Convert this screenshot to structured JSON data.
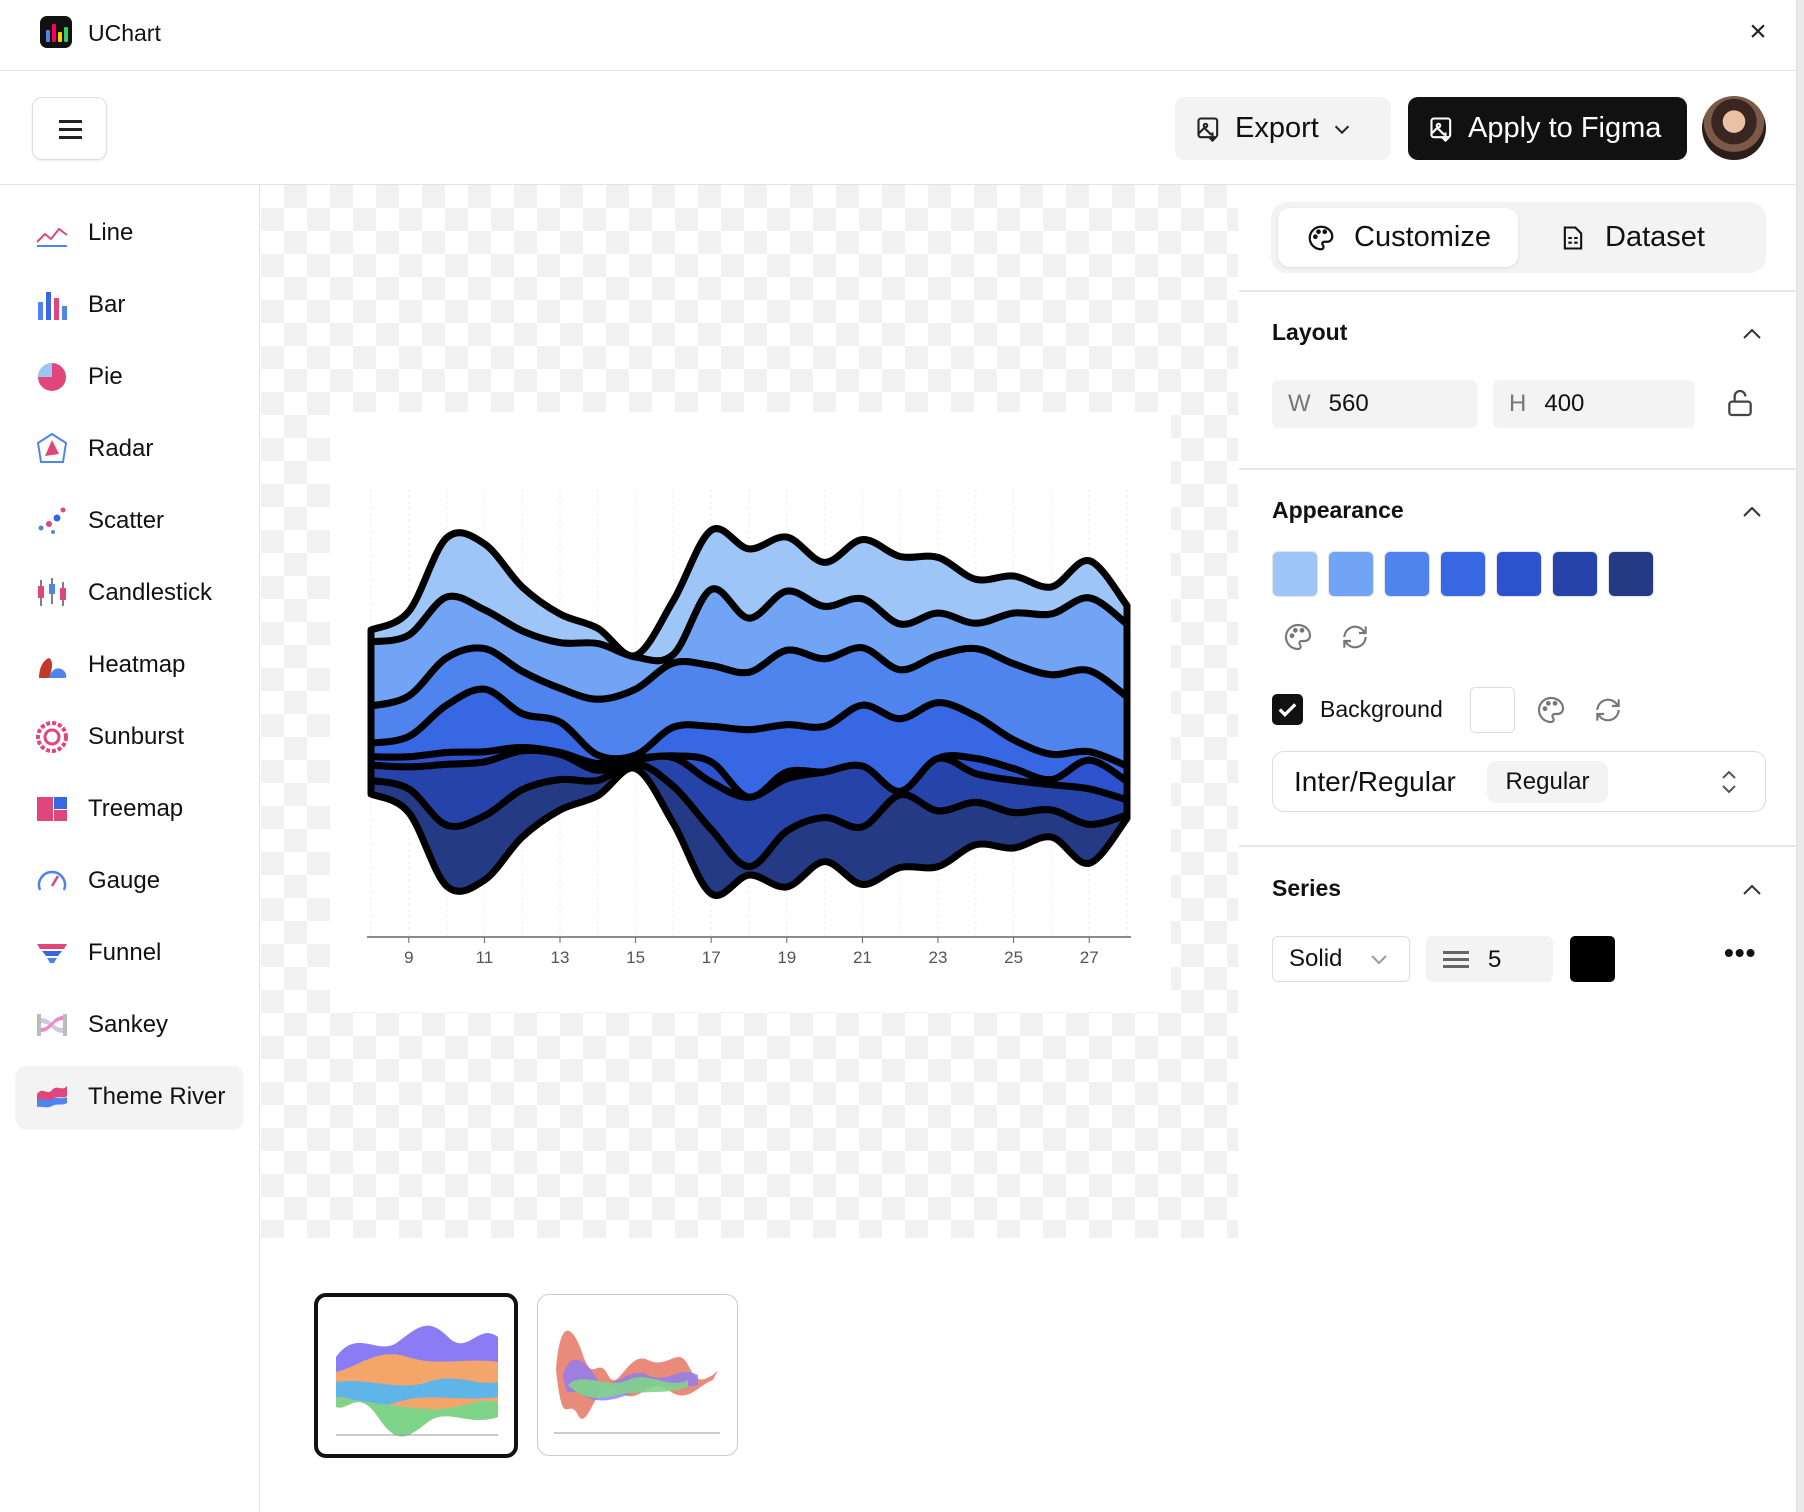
{
  "app": {
    "title": "UChart",
    "close_icon": "close-icon"
  },
  "toolbar": {
    "export_label": "Export",
    "apply_label": "Apply to Figma"
  },
  "sidebar": {
    "items": [
      {
        "label": "Line",
        "icon": "line-chart-icon"
      },
      {
        "label": "Bar",
        "icon": "bar-chart-icon"
      },
      {
        "label": "Pie",
        "icon": "pie-chart-icon"
      },
      {
        "label": "Radar",
        "icon": "radar-chart-icon"
      },
      {
        "label": "Scatter",
        "icon": "scatter-chart-icon"
      },
      {
        "label": "Candlestick",
        "icon": "candlestick-chart-icon"
      },
      {
        "label": "Heatmap",
        "icon": "heatmap-chart-icon"
      },
      {
        "label": "Sunburst",
        "icon": "sunburst-chart-icon"
      },
      {
        "label": "Treemap",
        "icon": "treemap-chart-icon"
      },
      {
        "label": "Gauge",
        "icon": "gauge-chart-icon"
      },
      {
        "label": "Funnel",
        "icon": "funnel-chart-icon"
      },
      {
        "label": "Sankey",
        "icon": "sankey-chart-icon"
      },
      {
        "label": "Theme River",
        "icon": "theme-river-chart-icon",
        "selected": true
      }
    ]
  },
  "panel": {
    "tabs": [
      {
        "label": "Customize",
        "active": true
      },
      {
        "label": "Dataset"
      }
    ],
    "layout": {
      "title": "Layout",
      "w_label": "W",
      "w": "560",
      "h_label": "H",
      "h": "400"
    },
    "appearance": {
      "title": "Appearance",
      "palette": [
        "#9dc5f8",
        "#71a4f5",
        "#4f84ee",
        "#3767e3",
        "#2c52d0",
        "#2643a9",
        "#253a85"
      ],
      "background_label": "Background",
      "background_checked": true,
      "background_color": "#ffffff",
      "font": "Inter/Regular",
      "font_weight": "Regular"
    },
    "series": {
      "title": "Series",
      "line_style": "Solid",
      "line_width": "5",
      "line_color": "#000000"
    }
  },
  "chart_data": {
    "type": "themeRiver",
    "x": [
      8,
      9,
      10,
      11,
      12,
      13,
      14,
      15,
      16,
      17,
      18,
      19,
      20,
      21,
      22,
      23,
      24,
      25,
      26,
      27,
      28
    ],
    "xticks": [
      "9",
      "11",
      "13",
      "15",
      "17",
      "19",
      "21",
      "23",
      "25",
      "27"
    ],
    "stroke_color": "#000000",
    "series": [
      {
        "color": "#9dc5f8",
        "values": [
          7,
          14,
          35,
          39,
          26,
          17,
          9,
          1,
          32,
          35,
          41,
          32,
          26,
          35,
          40,
          33,
          26,
          22,
          16,
          22,
          11
        ]
      },
      {
        "color": "#71a4f5",
        "values": [
          38,
          36,
          36,
          23,
          24,
          27,
          33,
          19,
          5,
          45,
          32,
          35,
          31,
          29,
          27,
          25,
          15,
          30,
          36,
          43,
          43
        ]
      },
      {
        "color": "#4f84ee",
        "values": [
          22,
          24,
          28,
          24,
          25,
          20,
          33,
          39,
          38,
          36,
          34,
          44,
          40,
          34,
          29,
          28,
          40,
          45,
          47,
          48,
          41
        ]
      },
      {
        "color": "#3767e3",
        "values": [
          8,
          12,
          28,
          37,
          20,
          18,
          5,
          2,
          17,
          21,
          40,
          28,
          27,
          36,
          43,
          33,
          25,
          17,
          15,
          5,
          9
        ]
      },
      {
        "color": "#2c52d0",
        "values": [
          5,
          6,
          7,
          6,
          2,
          1,
          4,
          1,
          1,
          12,
          0,
          4,
          0,
          0,
          0,
          0,
          9,
          7,
          3,
          17,
          11
        ]
      },
      {
        "color": "#2643a9",
        "values": [
          9,
          13,
          36,
          32,
          23,
          15,
          6,
          2,
          17,
          28,
          41,
          31,
          27,
          36,
          2,
          31,
          17,
          19,
          15,
          21,
          9
        ]
      },
      {
        "color": "#253a85",
        "values": [
          8,
          14,
          36,
          38,
          28,
          18,
          9,
          3,
          22,
          38,
          5,
          33,
          26,
          34,
          43,
          33,
          25,
          21,
          16,
          23,
          2
        ]
      }
    ]
  }
}
